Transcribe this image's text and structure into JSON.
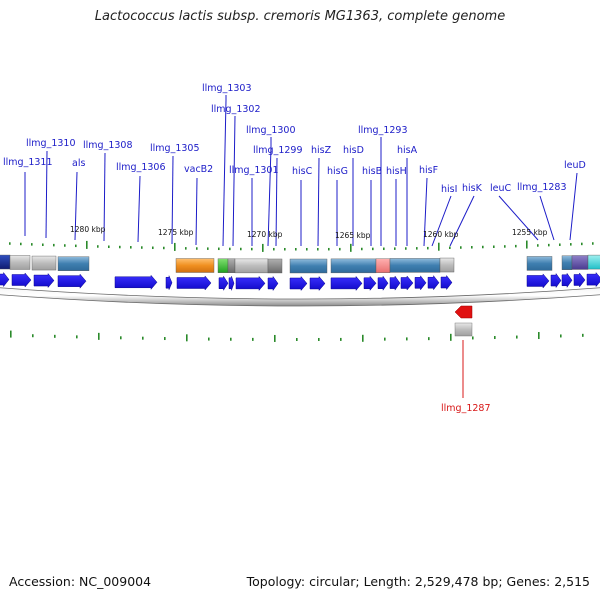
{
  "title": "Lactococcus lactis subsp. cremoris MG1363, complete genome",
  "accession_text": "Accession: NC_009004",
  "summary_text": "Topology: circular; Length: 2,529,478 bp; Genes: 2,515",
  "colors": {
    "gene_label": "#1c1cc8",
    "highlight_label": "#d81818",
    "forward_arrow": "#1a10e8",
    "reverse_arrow": "#e01010",
    "tick": "#2a8a2a",
    "backbone": "#9a9a9a"
  },
  "scale_labels": [
    "1280 kbp",
    "1275 kbp",
    "1270 kbp",
    "1265 kbp",
    "1260 kbp",
    "1255 kbp"
  ],
  "gene_labels": [
    {
      "text": "llmg_1311"
    },
    {
      "text": "llmg_1310"
    },
    {
      "text": "als"
    },
    {
      "text": "llmg_1308"
    },
    {
      "text": "llmg_1306"
    },
    {
      "text": "llmg_1305"
    },
    {
      "text": "vacB2"
    },
    {
      "text": "llmg_1303"
    },
    {
      "text": "llmg_1302"
    },
    {
      "text": "llmg_1301"
    },
    {
      "text": "llmg_1300"
    },
    {
      "text": "llmg_1299"
    },
    {
      "text": "hisC"
    },
    {
      "text": "hisZ"
    },
    {
      "text": "hisG"
    },
    {
      "text": "hisD"
    },
    {
      "text": "llmg_1293"
    },
    {
      "text": "hisB"
    },
    {
      "text": "hisH"
    },
    {
      "text": "hisA"
    },
    {
      "text": "hisF"
    },
    {
      "text": "hisI"
    },
    {
      "text": "hisK"
    },
    {
      "text": "leuC"
    },
    {
      "text": "llmg_1283"
    },
    {
      "text": "leuD"
    },
    {
      "text": "llmg_1287"
    }
  ]
}
